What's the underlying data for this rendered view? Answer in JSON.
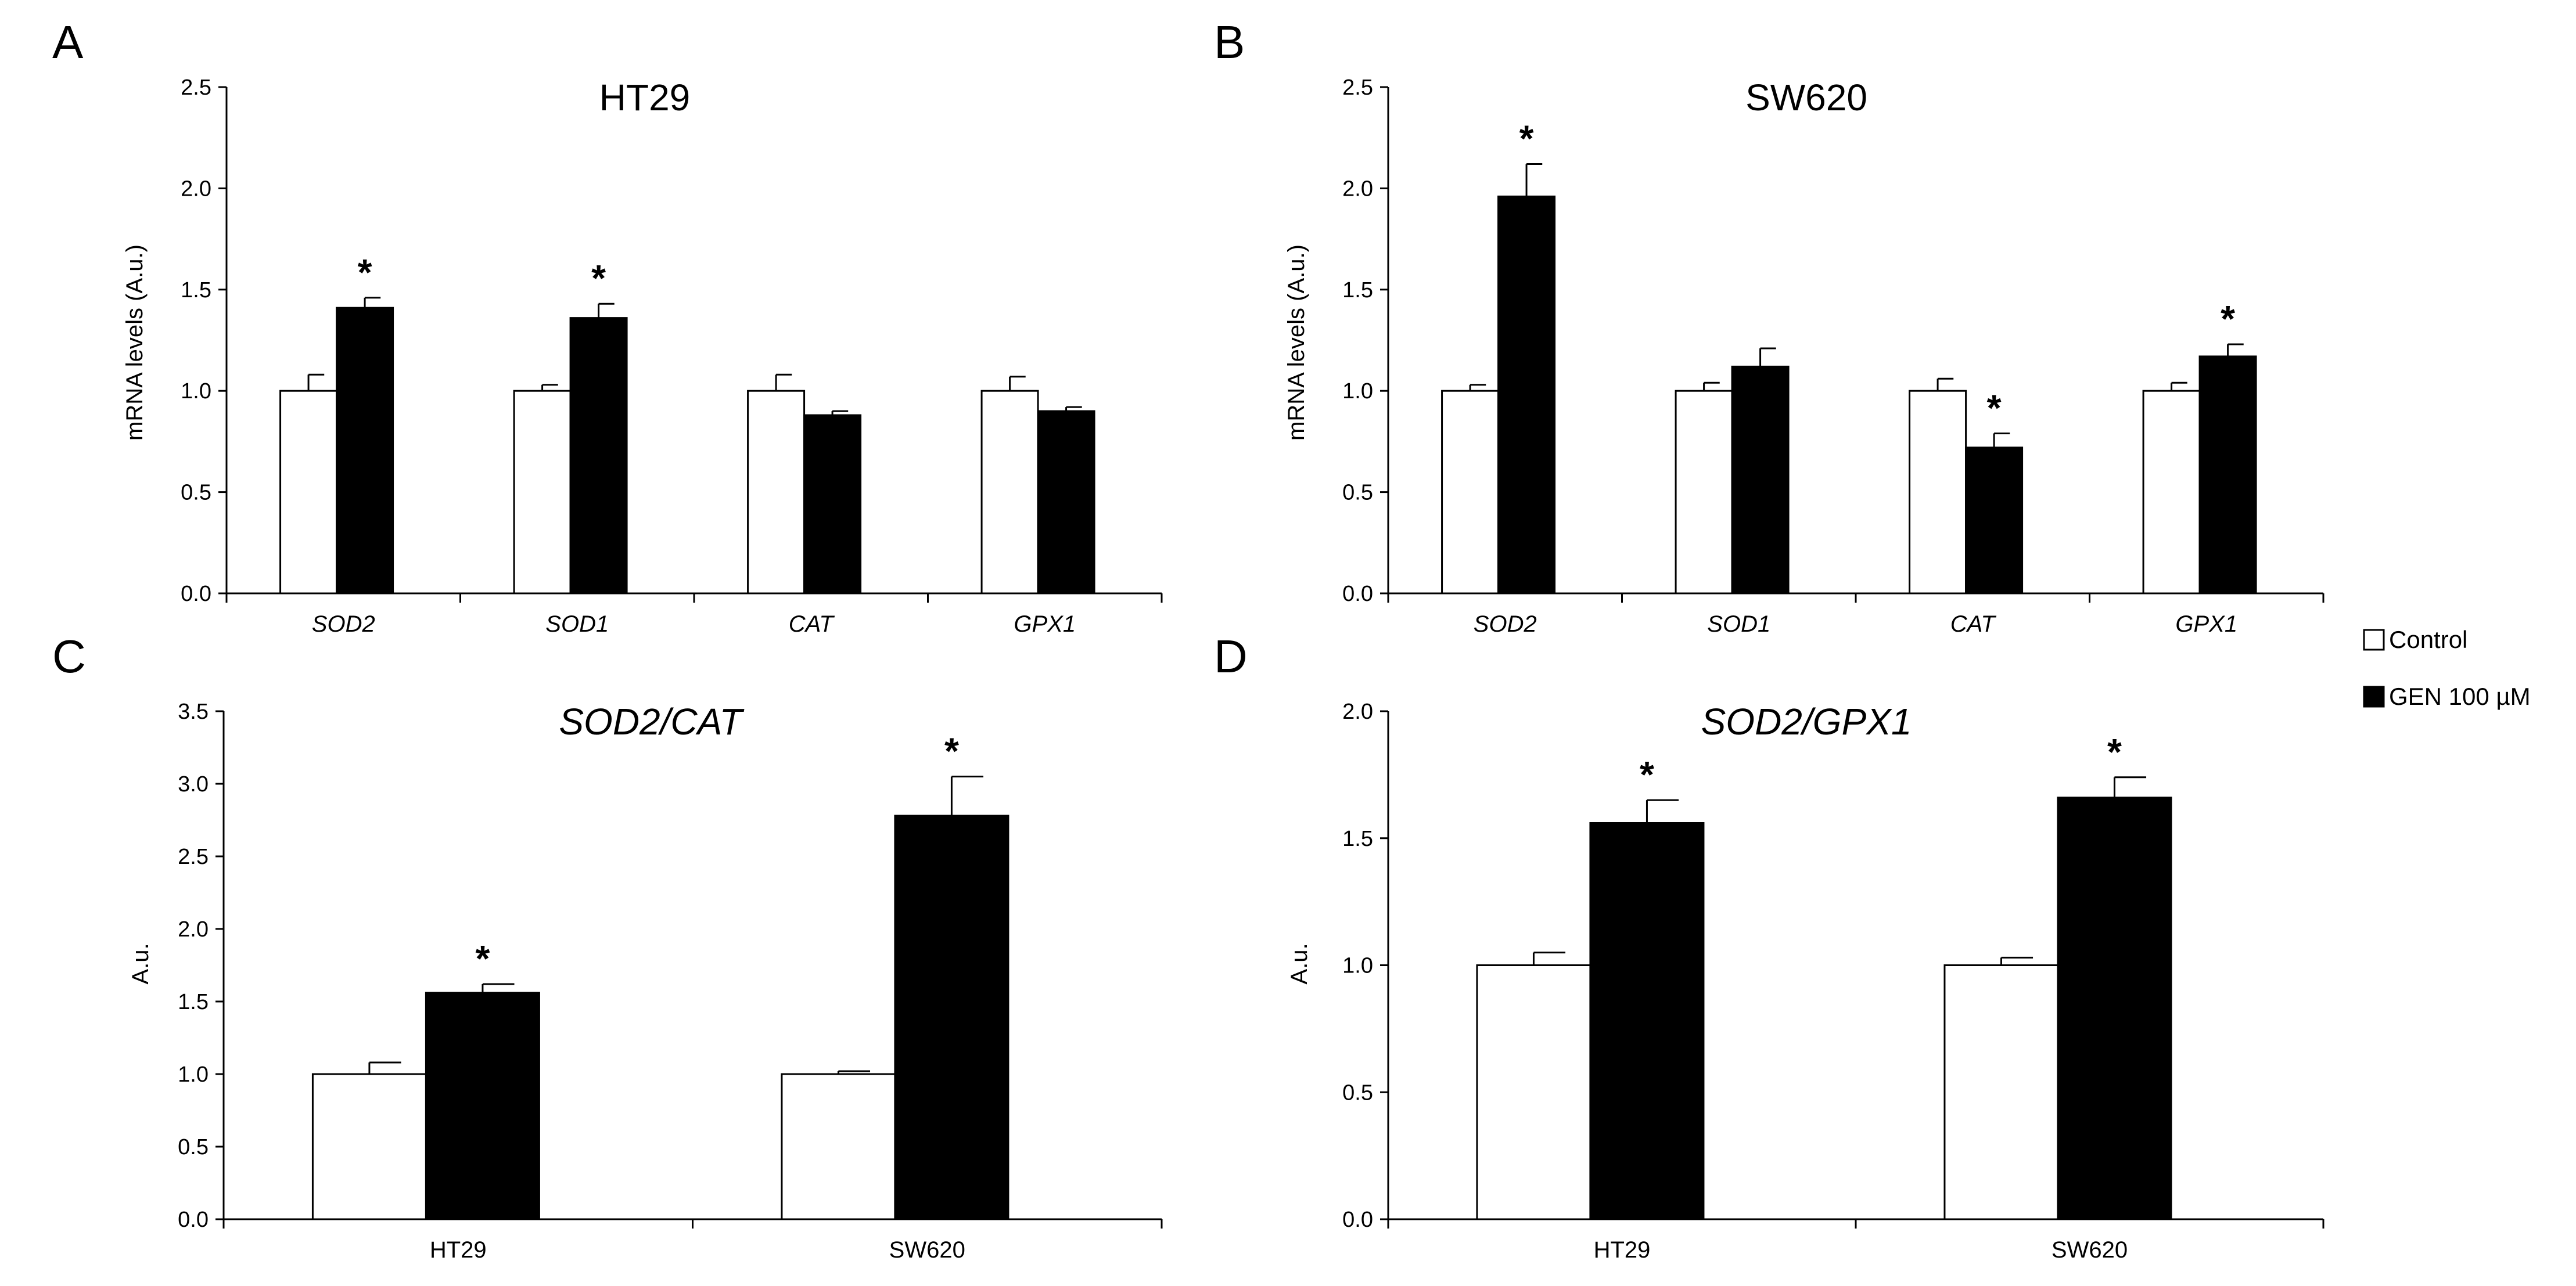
{
  "legend": [
    {
      "label": "Control",
      "color": "#ffffff"
    },
    {
      "label": "GEN  100 µM",
      "color": "#000000"
    }
  ],
  "chart_data": [
    {
      "panel": "A",
      "type": "bar",
      "title": "HT29",
      "title_italic": false,
      "categories": [
        "SOD2",
        "SOD1",
        "CAT",
        "GPX1"
      ],
      "categories_italic": true,
      "ylabel": "mRNA levels (A.u.)",
      "ylim": [
        0,
        2.5
      ],
      "yticks": [
        "0.0",
        "0.5",
        "1.0",
        "1.5",
        "2.0",
        "2.5"
      ],
      "series": [
        {
          "name": "Control",
          "values": [
            1.0,
            1.0,
            1.0,
            1.0
          ],
          "errors": [
            0.08,
            0.03,
            0.08,
            0.07
          ],
          "stars": [
            false,
            false,
            false,
            false
          ]
        },
        {
          "name": "GEN  100 µM",
          "values": [
            1.41,
            1.36,
            0.88,
            0.9
          ],
          "errors": [
            0.05,
            0.07,
            0.02,
            0.02
          ],
          "stars": [
            true,
            true,
            false,
            false
          ]
        }
      ],
      "star_label": "*"
    },
    {
      "panel": "B",
      "type": "bar",
      "title": "SW620",
      "title_italic": false,
      "categories": [
        "SOD2",
        "SOD1",
        "CAT",
        "GPX1"
      ],
      "categories_italic": true,
      "ylabel": "mRNA levels (A.u.)",
      "ylim": [
        0,
        2.5
      ],
      "yticks": [
        "0.0",
        "0.5",
        "1.0",
        "1.5",
        "2.0",
        "2.5"
      ],
      "series": [
        {
          "name": "Control",
          "values": [
            1.0,
            1.0,
            1.0,
            1.0
          ],
          "errors": [
            0.03,
            0.04,
            0.06,
            0.04
          ],
          "stars": [
            false,
            false,
            false,
            false
          ]
        },
        {
          "name": "GEN  100 µM",
          "values": [
            1.96,
            1.12,
            0.72,
            1.17
          ],
          "errors": [
            0.16,
            0.09,
            0.07,
            0.06
          ],
          "stars": [
            true,
            false,
            true,
            true
          ]
        }
      ],
      "star_label": "*"
    },
    {
      "panel": "C",
      "type": "bar",
      "title": "SOD2/CAT",
      "title_italic": true,
      "categories": [
        "HT29",
        "SW620"
      ],
      "categories_italic": false,
      "ylabel": "A.u.",
      "ylim": [
        0,
        3.5
      ],
      "yticks": [
        "0.0",
        "0.5",
        "1.0",
        "1.5",
        "2.0",
        "2.5",
        "3.0",
        "3.5"
      ],
      "series": [
        {
          "name": "Control",
          "values": [
            1.0,
            1.0
          ],
          "errors": [
            0.08,
            0.02
          ],
          "stars": [
            false,
            false
          ]
        },
        {
          "name": "GEN  100 µM",
          "values": [
            1.56,
            2.78
          ],
          "errors": [
            0.06,
            0.27
          ],
          "stars": [
            true,
            true
          ]
        }
      ],
      "star_label": "*"
    },
    {
      "panel": "D",
      "type": "bar",
      "title": "SOD2/GPX1",
      "title_italic": true,
      "categories": [
        "HT29",
        "SW620"
      ],
      "categories_italic": false,
      "ylabel": "A.u.",
      "ylim": [
        0,
        2.0
      ],
      "yticks": [
        "0.0",
        "0.5",
        "1.0",
        "1.5",
        "2.0"
      ],
      "series": [
        {
          "name": "Control",
          "values": [
            1.0,
            1.0
          ],
          "errors": [
            0.05,
            0.03
          ],
          "stars": [
            false,
            false
          ]
        },
        {
          "name": "GEN  100 µM",
          "values": [
            1.56,
            1.66
          ],
          "errors": [
            0.09,
            0.08
          ],
          "stars": [
            true,
            true
          ]
        }
      ],
      "star_label": "*"
    }
  ]
}
